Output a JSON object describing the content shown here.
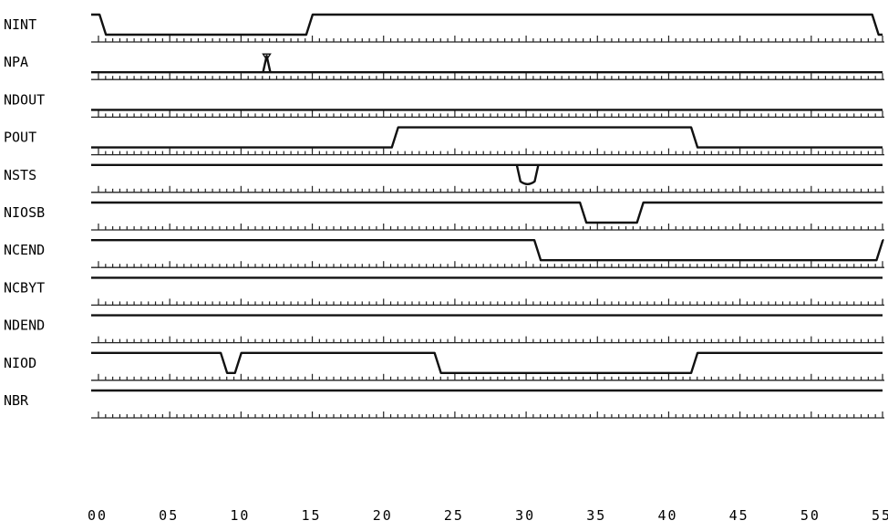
{
  "time_axis": {
    "min": 0,
    "max": 55,
    "labels": [
      "00",
      "05",
      "10",
      "15",
      "20",
      "25",
      "30",
      "35",
      "40",
      "45",
      "50",
      "55"
    ],
    "minor_tick_step": 1,
    "major_tick_step": 5
  },
  "signals": [
    {
      "name": "NINT",
      "initial": "high",
      "transitions": [
        [
          0.3,
          "low"
        ],
        [
          14.8,
          "high"
        ],
        [
          54.5,
          "low"
        ]
      ]
    },
    {
      "name": "NPA",
      "initial": "low",
      "pulses": [
        {
          "t": 11.8,
          "type": "high-spike"
        }
      ],
      "transitions": []
    },
    {
      "name": "NDOUT",
      "initial": "low",
      "transitions": []
    },
    {
      "name": "POUT",
      "initial": "low",
      "transitions": [
        [
          20.8,
          "high"
        ],
        [
          41.8,
          "low"
        ]
      ]
    },
    {
      "name": "NSTS",
      "initial": "high",
      "pulses": [
        {
          "t_start": 29.6,
          "t_end": 30.6,
          "type": "low-pulse"
        }
      ],
      "transitions": []
    },
    {
      "name": "NIOSB",
      "initial": "high",
      "transitions": [
        [
          34.0,
          "low"
        ],
        [
          38.0,
          "high"
        ]
      ]
    },
    {
      "name": "NCEND",
      "initial": "high",
      "transitions": [
        [
          30.8,
          "low"
        ],
        [
          54.8,
          "high"
        ]
      ]
    },
    {
      "name": "NCBYT",
      "initial": "high",
      "transitions": []
    },
    {
      "name": "NDEND",
      "initial": "high",
      "transitions": []
    },
    {
      "name": "NIOD",
      "initial": "high",
      "transitions": [
        [
          8.8,
          "low"
        ],
        [
          9.8,
          "high"
        ],
        [
          23.8,
          "low"
        ],
        [
          41.8,
          "high"
        ]
      ]
    },
    {
      "name": "NBR",
      "initial": "high",
      "transitions": []
    }
  ]
}
